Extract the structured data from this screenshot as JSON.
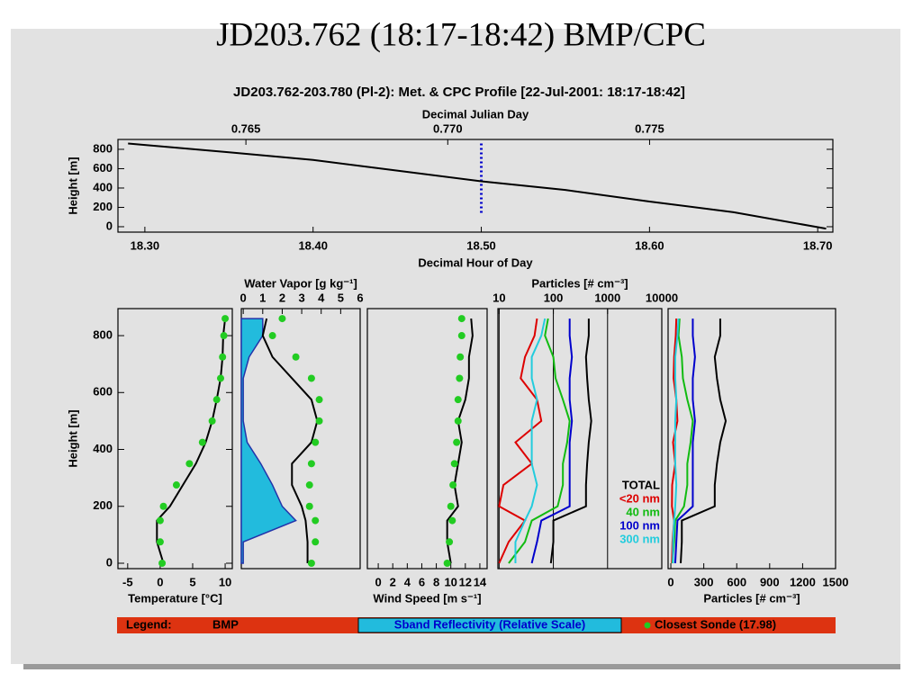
{
  "page_title": "JD203.762 (18:17-18:42) BMP/CPC",
  "legend": {
    "title": "Legend:",
    "items": [
      "BMP",
      "Sband Reflectivity (Relative Scale)",
      "Closest Sonde (17.98)"
    ]
  },
  "chart_data": [
    {
      "type": "line",
      "title": "JD203.762-203.780 (Pl-2): Met. & CPC Profile [22-Jul-2001: 18:17-18:42]",
      "xlabel": "Decimal Hour of Day",
      "x2label": "Decimal Julian Day",
      "ylabel": "Height [m]",
      "xlim": [
        18.284,
        18.709
      ],
      "xticks": [
        {
          "value": 18.3,
          "label": "18.30"
        },
        {
          "value": 18.4,
          "label": "18.40"
        },
        {
          "value": 18.5,
          "label": "18.50"
        },
        {
          "value": 18.6,
          "label": "18.60"
        },
        {
          "value": 18.7,
          "label": "18.70"
        }
      ],
      "x2lim": [
        0.76183,
        0.77954
      ],
      "x2ticks": [
        0.765,
        {
          "value": 0.77,
          "label": "0.770"
        },
        0.775
      ],
      "ylim": [
        -56,
        902
      ],
      "yticks": [
        0,
        200,
        400,
        600,
        800
      ],
      "vline": {
        "value": 18.5,
        "color": "#0000cc"
      },
      "series": [
        {
          "color": "#000000",
          "x": [
            18.29,
            18.35,
            18.4,
            18.45,
            18.5,
            18.55,
            18.6,
            18.65,
            18.705
          ],
          "values": [
            860,
            770,
            690,
            580,
            470,
            380,
            260,
            150,
            -20
          ]
        }
      ]
    },
    {
      "type": "profile",
      "xlabel": "Temperature [°C]",
      "ylabel": "Height [m]",
      "xlim": [
        -6.5,
        11.1
      ],
      "xticks": [
        -5,
        0,
        5,
        10
      ],
      "ylim": [
        -19,
        895
      ],
      "yticks": [
        0,
        200,
        400,
        600,
        800
      ],
      "y": [
        0,
        75,
        150,
        200,
        275,
        350,
        425,
        500,
        575,
        650,
        725,
        800,
        860
      ],
      "series": [
        {
          "color": "#000000",
          "mark": "line",
          "values": [
            0.5,
            -0.5,
            -0.5,
            1.5,
            3.5,
            5.5,
            7,
            8,
            8.7,
            9.3,
            9.6,
            9.7,
            10
          ]
        },
        {
          "color": "#22cc22",
          "mark": "dots",
          "values": [
            0.3,
            0,
            0,
            0.5,
            2.5,
            4.5,
            6.5,
            8,
            8.7,
            9.3,
            9.6,
            9.8,
            10
          ]
        }
      ]
    },
    {
      "type": "profile",
      "x2label": "Water Vapor [g kg⁻¹]",
      "x2lim": [
        -0.1,
        6
      ],
      "x2ticks": [
        0,
        1,
        2,
        3,
        4,
        5,
        6
      ],
      "ylim": [
        -19,
        895
      ],
      "y": [
        0,
        75,
        150,
        200,
        275,
        350,
        425,
        500,
        575,
        650,
        725,
        800,
        860
      ],
      "series": [
        {
          "color": "#22bbdd",
          "mark": "area",
          "values": [
            0,
            0,
            2.7,
            2,
            1.5,
            0.9,
            0.2,
            0,
            0,
            0,
            0.3,
            1,
            1
          ]
        },
        {
          "color": "#000000",
          "mark": "line",
          "values": [
            3.3,
            3.3,
            3.2,
            3,
            2.5,
            2.5,
            3.5,
            3.8,
            3.5,
            2.5,
            1.5,
            1,
            1.2
          ]
        },
        {
          "color": "#22cc22",
          "mark": "dots",
          "values": [
            3.5,
            3.7,
            3.7,
            3.4,
            3.4,
            3.5,
            3.7,
            3.9,
            3.9,
            3.5,
            2.7,
            1.5,
            2
          ]
        }
      ]
    },
    {
      "type": "profile",
      "xlabel": "Wind Speed [m s⁻¹]",
      "xlim": [
        -1.5,
        15
      ],
      "xticks": [
        0,
        2,
        4,
        6,
        8,
        10,
        12,
        14
      ],
      "ylim": [
        -19,
        895
      ],
      "y": [
        0,
        75,
        150,
        200,
        275,
        350,
        425,
        500,
        575,
        650,
        725,
        800,
        860
      ],
      "series": [
        {
          "color": "#000000",
          "mark": "line",
          "values": [
            10,
            9.5,
            9.5,
            11,
            10.5,
            11,
            11.5,
            11,
            12,
            12.5,
            12.5,
            13,
            12.8
          ]
        },
        {
          "color": "#22cc22",
          "mark": "dots",
          "values": [
            9.5,
            9.8,
            10.2,
            10,
            10.3,
            10.5,
            10.8,
            11,
            11,
            11.2,
            11.3,
            11.5,
            11.5
          ]
        }
      ]
    },
    {
      "type": "profile",
      "x2label": "Particles [# cm⁻³]",
      "xscale": "log",
      "grid": true,
      "x2lim": [
        9.5,
        10000
      ],
      "x2ticks": [
        10,
        100,
        1000,
        10000
      ],
      "ylim": [
        -19,
        895
      ],
      "y": [
        0,
        75,
        150,
        200,
        275,
        350,
        425,
        500,
        575,
        650,
        725,
        800,
        860
      ],
      "series": [
        {
          "name": "TOTAL",
          "color": "#000000",
          "mark": "line",
          "values": [
            90,
            100,
            100,
            400,
            400,
            420,
            450,
            500,
            450,
            420,
            400,
            450,
            450
          ]
        },
        {
          "name": "<20 nm",
          "color": "#dd0000",
          "mark": "line",
          "values": [
            10,
            15,
            30,
            10,
            12,
            40,
            20,
            60,
            50,
            25,
            30,
            45,
            50
          ]
        },
        {
          "name": "40 nm",
          "color": "#11bb11",
          "mark": "line",
          "values": [
            15,
            30,
            40,
            120,
            150,
            150,
            180,
            200,
            150,
            110,
            100,
            70,
            80
          ]
        },
        {
          "name": "100 nm",
          "color": "#0000cc",
          "mark": "line",
          "values": [
            40,
            50,
            60,
            200,
            200,
            200,
            200,
            220,
            200,
            200,
            220,
            200,
            200
          ]
        },
        {
          "name": "300 nm",
          "color": "#22ccdd",
          "mark": "line",
          "values": [
            20,
            20,
            30,
            40,
            50,
            40,
            40,
            40,
            50,
            40,
            40,
            60,
            70
          ]
        }
      ]
    },
    {
      "type": "profile",
      "xlabel": "Particles [# cm⁻³]",
      "xlim": [
        -25,
        1500
      ],
      "xticks": [
        0,
        300,
        600,
        900,
        1200,
        1500
      ],
      "ylim": [
        -19,
        895
      ],
      "y": [
        0,
        75,
        150,
        200,
        275,
        350,
        425,
        500,
        575,
        650,
        725,
        800,
        860
      ],
      "series": [
        {
          "color": "#000000",
          "mark": "line",
          "values": [
            90,
            100,
            100,
            400,
            400,
            420,
            450,
            500,
            450,
            420,
            400,
            450,
            450
          ]
        },
        {
          "color": "#dd0000",
          "mark": "line",
          "values": [
            10,
            15,
            30,
            10,
            12,
            40,
            20,
            60,
            50,
            25,
            30,
            45,
            50
          ]
        },
        {
          "color": "#11bb11",
          "mark": "line",
          "values": [
            15,
            30,
            40,
            120,
            150,
            150,
            180,
            200,
            150,
            110,
            100,
            70,
            80
          ]
        },
        {
          "color": "#0000cc",
          "mark": "line",
          "values": [
            40,
            50,
            60,
            200,
            200,
            200,
            200,
            220,
            200,
            200,
            220,
            200,
            200
          ]
        },
        {
          "color": "#22ccdd",
          "mark": "line",
          "values": [
            20,
            20,
            30,
            40,
            50,
            40,
            40,
            40,
            50,
            40,
            40,
            60,
            70
          ]
        }
      ]
    }
  ]
}
